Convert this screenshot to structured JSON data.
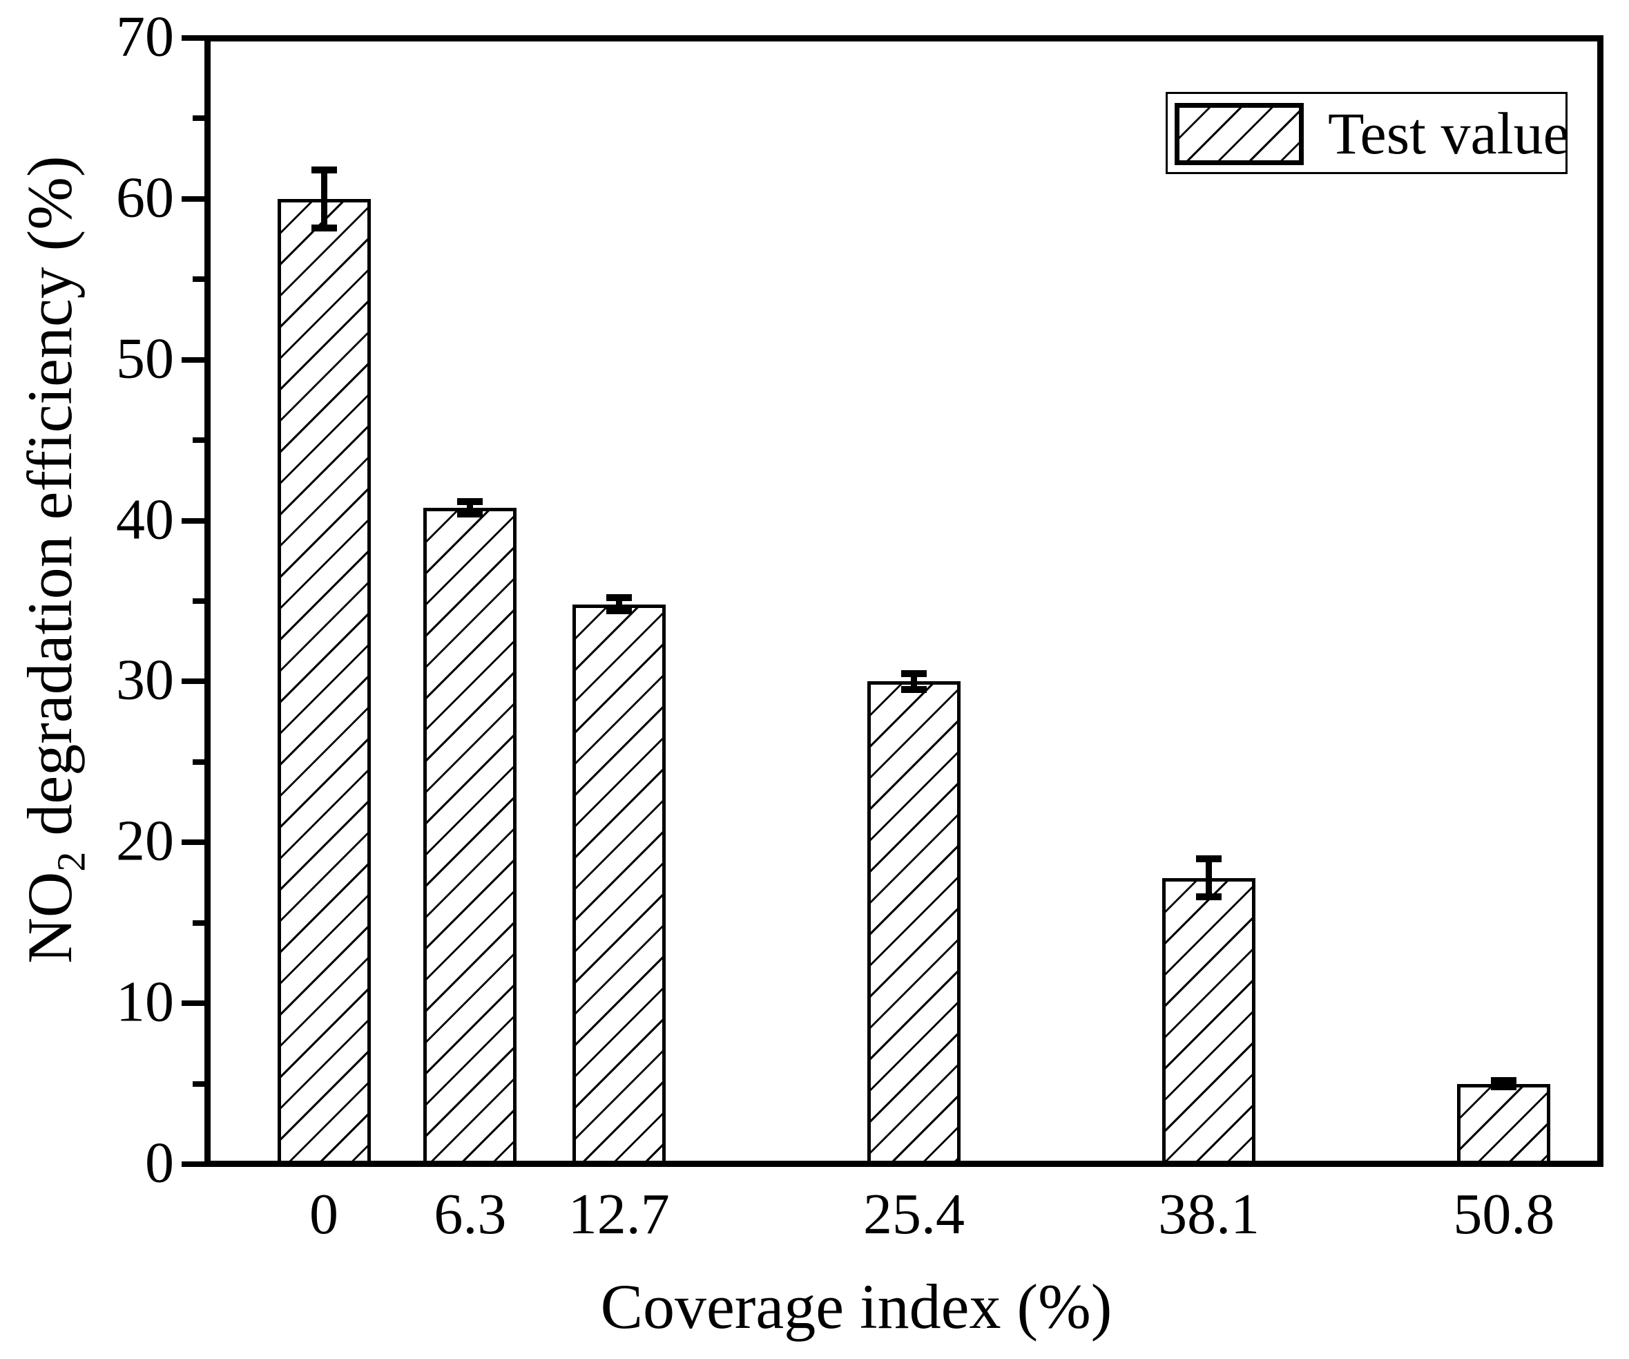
{
  "figure": {
    "background": "#ffffff",
    "ink_color": "#000000"
  },
  "chart_data": {
    "type": "bar",
    "title": "",
    "xlabel": "Coverage index (%)",
    "ylabel": "NO2 degradation efficiency (%)",
    "ylabel_parts": {
      "prefix": "NO",
      "subscript": "2",
      "suffix": " degradation efficiency (%)"
    },
    "categories": [
      "0",
      "6.3",
      "12.7",
      "25.4",
      "38.1",
      "50.8"
    ],
    "x_values": [
      0,
      6.3,
      12.7,
      25.4,
      38.1,
      50.8
    ],
    "series": [
      {
        "name": "Test value",
        "values": [
          60.0,
          40.8,
          34.8,
          30.0,
          17.8,
          5.0
        ],
        "errors": [
          1.8,
          0.4,
          0.4,
          0.5,
          1.2,
          0.2
        ],
        "hatch": "/",
        "fill": "#ffffff",
        "edge_color": "#000000"
      }
    ],
    "ylim": [
      0,
      70
    ],
    "yticks": [
      0,
      10,
      20,
      30,
      40,
      50,
      60,
      70
    ],
    "y_minor_tick_step": 5,
    "xlim": [
      -5,
      55
    ],
    "bar_width_x_units": 4,
    "grid": false,
    "error_bars": true,
    "legend": {
      "position": "top-right",
      "entries": [
        "Test value"
      ]
    }
  }
}
